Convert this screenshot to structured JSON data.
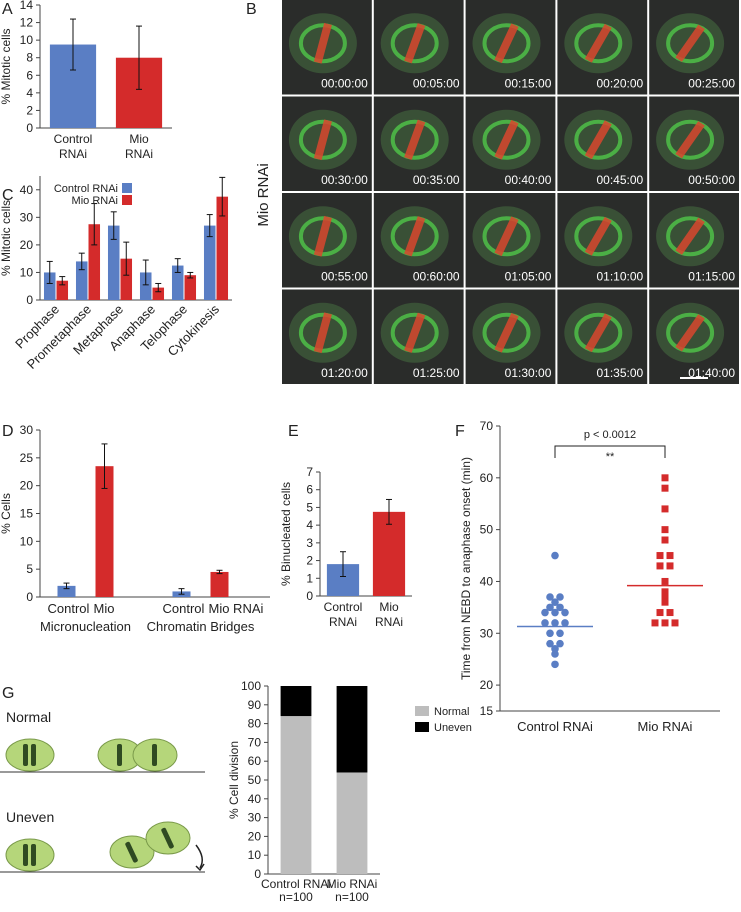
{
  "panel_labels": [
    "A",
    "B",
    "C",
    "D",
    "E",
    "F",
    "G"
  ],
  "chart_data": [
    {
      "type": "bar",
      "ylabel": "% Mitotic cells",
      "categories": [
        "Control RNAi",
        "Mio RNAi"
      ],
      "values": [
        9.5,
        8.0
      ],
      "errors": [
        2.9,
        3.6
      ],
      "colors": [
        "#5a7ec4",
        "#d42b2b"
      ],
      "ylim": [
        0,
        14
      ],
      "yticks": [
        0,
        2,
        4,
        6,
        8,
        10,
        12,
        14
      ]
    },
    {
      "type": "grouped_bar",
      "ylabel": "% Mitotic cells",
      "categories": [
        "Prophase",
        "Prometaphase",
        "Metaphase",
        "Anaphase",
        "Telophase",
        "Cytokinesis"
      ],
      "series": [
        {
          "name": "Control RNAi",
          "color": "#5a7ec4",
          "values": [
            10,
            14,
            27,
            10,
            12.5,
            27
          ],
          "errors": [
            4,
            3,
            5,
            4.5,
            2.5,
            4
          ]
        },
        {
          "name": "Mio RNAi",
          "color": "#d42b2b",
          "values": [
            7,
            27.5,
            15,
            4.5,
            9,
            37.5
          ],
          "errors": [
            1.5,
            7.5,
            6,
            1.5,
            1,
            7
          ]
        }
      ],
      "ylim": [
        0,
        45
      ],
      "yticks": [
        0,
        10,
        20,
        30,
        40
      ],
      "legend": "upper left",
      "rotate_labels": true
    },
    {
      "type": "grouped_bar",
      "ylabel": "% Cells",
      "categories": [
        "Micronucleation",
        "Chromatin Bridges"
      ],
      "bar_labels": [
        [
          "Control",
          "Mio"
        ],
        [
          "Control",
          "Mio RNAi"
        ]
      ],
      "series": [
        {
          "color": "#5a7ec4",
          "values": [
            2,
            1
          ],
          "errors": [
            0.5,
            0.5
          ]
        },
        {
          "color": "#d42b2b",
          "values": [
            23.5,
            4.5
          ],
          "errors": [
            4,
            0.3
          ]
        }
      ],
      "ylim": [
        0,
        30
      ],
      "yticks": [
        0,
        5,
        10,
        15,
        20,
        25,
        30
      ]
    },
    {
      "type": "bar",
      "ylabel": "% Binucleated cells",
      "categories": [
        "Control RNAi",
        "Mio RNAi"
      ],
      "values": [
        1.8,
        4.75
      ],
      "errors": [
        0.7,
        0.7
      ],
      "colors": [
        "#5a7ec4",
        "#d42b2b"
      ],
      "ylim": [
        0,
        7
      ],
      "yticks": [
        0,
        1,
        2,
        3,
        4,
        5,
        6,
        7
      ]
    },
    {
      "type": "strip",
      "ylabel": "Time from NEBD to anaphase onset (min)",
      "categories": [
        "Control RNAi",
        "Mio RNAi"
      ],
      "series": [
        {
          "color": "#5a7ec4",
          "marker": "circle",
          "values": [
            45,
            37,
            37,
            36,
            35,
            35,
            34,
            34,
            34,
            32,
            32,
            32,
            30,
            30,
            28,
            28,
            27,
            26,
            24
          ],
          "center": 31.3
        },
        {
          "color": "#d42b2b",
          "marker": "square",
          "values": [
            60,
            58,
            54,
            50,
            48,
            45,
            45,
            43,
            43,
            40,
            38,
            37,
            36,
            34,
            34,
            32,
            32,
            32
          ],
          "center": 39.2
        }
      ],
      "ylim": [
        15,
        70
      ],
      "yticks": [
        15,
        20,
        30,
        40,
        50,
        60,
        70
      ],
      "annotation": "p < 0.0012",
      "significance": "**"
    },
    {
      "type": "stacked_bar",
      "ylabel": "% Cell division",
      "categories": [
        "Control RNAi",
        "Mio RNAi"
      ],
      "category_notes": [
        "n=100",
        "n=100"
      ],
      "series": [
        {
          "name": "Normal",
          "color": "#bdbdbd",
          "values": [
            84,
            54
          ]
        },
        {
          "name": "Uneven",
          "color": "#000000",
          "values": [
            16,
            46
          ]
        }
      ],
      "ylim": [
        0,
        100
      ],
      "yticks": [
        0,
        10,
        20,
        30,
        40,
        50,
        60,
        70,
        80,
        90,
        100
      ],
      "legend": "right"
    }
  ],
  "microscopy": {
    "label": "Mio RNAi",
    "timestamps": [
      "00:00:00",
      "00:05:00",
      "00:15:00",
      "00:20:00",
      "00:25:00",
      "00:30:00",
      "00:35:00",
      "00:40:00",
      "00:45:00",
      "00:50:00",
      "00:55:00",
      "00:60:00",
      "01:05:00",
      "01:10:00",
      "01:15:00",
      "01:20:00",
      "01:25:00",
      "01:30:00",
      "01:35:00",
      "01:40:00"
    ]
  },
  "diagram": {
    "labels": [
      "Normal",
      "Uneven"
    ]
  }
}
